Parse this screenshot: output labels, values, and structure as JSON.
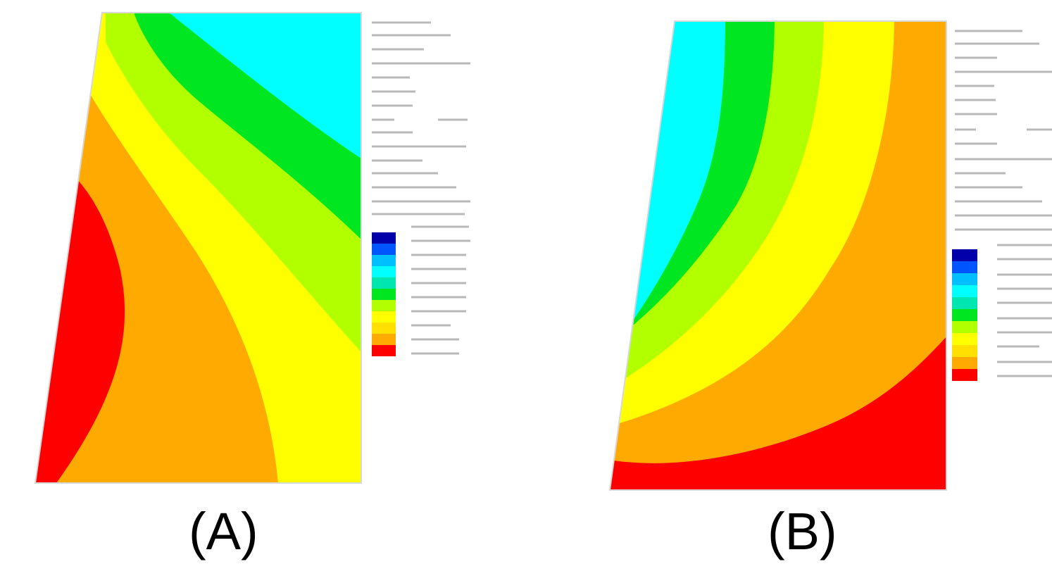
{
  "panels": [
    {
      "id": "A",
      "caption": "(A)"
    },
    {
      "id": "B",
      "caption": "(B)"
    }
  ],
  "colors": {
    "red": "#ff0000",
    "orange": "#ffaa00",
    "yellow": "#ffff00",
    "yellow_green": "#b2ff00",
    "green": "#00e620",
    "cyan_green": "#00e6b0",
    "cyan": "#00ffff",
    "light_blue": "#00bfff",
    "blue": "#0055ff",
    "dark_blue": "#0000aa"
  }
}
